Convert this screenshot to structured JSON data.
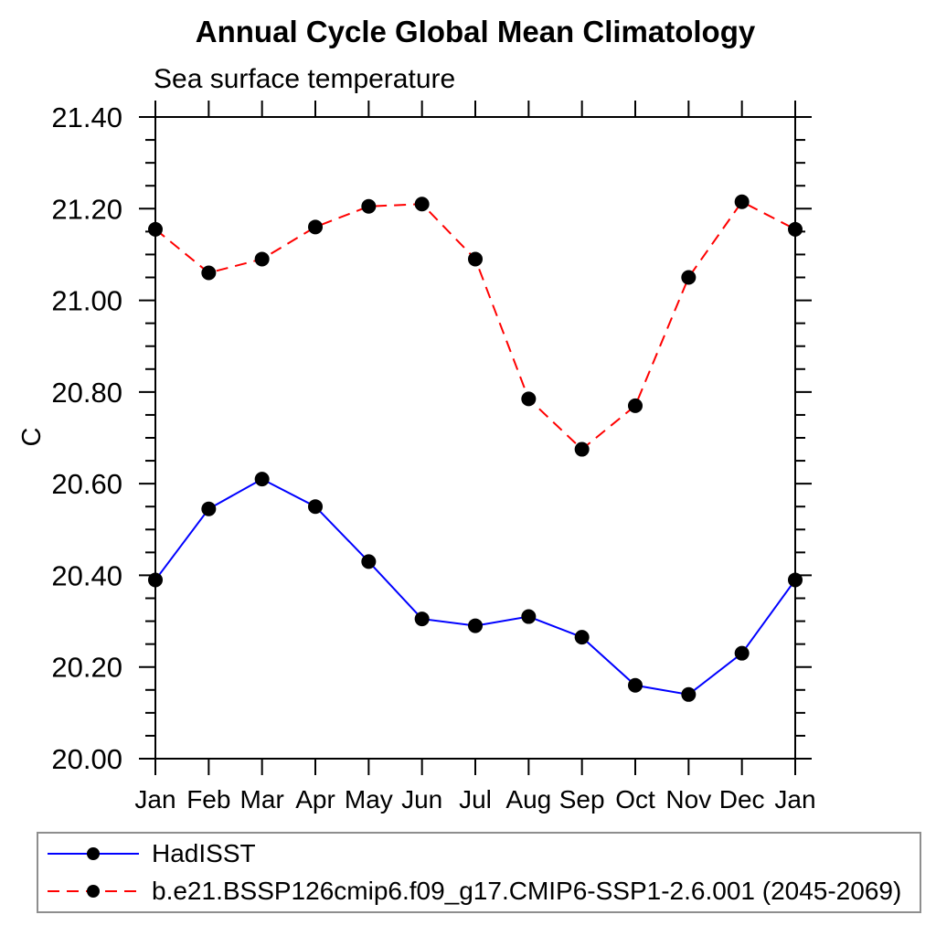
{
  "chart_data": {
    "type": "line",
    "title": "Annual Cycle Global Mean Climatology",
    "subtitle": "Sea surface temperature",
    "ylabel": "C",
    "xlabel": "",
    "ylim": [
      20.0,
      21.4
    ],
    "ytick_major": 0.2,
    "ytick_minor": 0.05,
    "ytick_labels": [
      "20.00",
      "20.20",
      "20.40",
      "20.60",
      "20.80",
      "21.00",
      "21.20",
      "21.40"
    ],
    "x_categories": [
      "Jan",
      "Feb",
      "Mar",
      "Apr",
      "May",
      "Jun",
      "Jul",
      "Aug",
      "Sep",
      "Oct",
      "Nov",
      "Dec",
      "Jan"
    ],
    "grid": false,
    "axis_color": "#000000",
    "marker_shape": "filled-circle",
    "legend_position": "bottom-left-box",
    "legend_border_color": "#8e8e8e",
    "series": [
      {
        "name": "HadISST",
        "color": "#0000ff",
        "line_style": "solid",
        "marker_color": "#000000",
        "values": [
          20.39,
          20.545,
          20.61,
          20.55,
          20.43,
          20.305,
          20.29,
          20.31,
          20.265,
          20.16,
          20.14,
          20.23,
          20.39
        ]
      },
      {
        "name": "b.e21.BSSP126cmip6.f09_g17.CMIP6-SSP1-2.6.001 (2045-2069)",
        "color": "#ff0000",
        "line_style": "dashed",
        "marker_color": "#000000",
        "values": [
          21.155,
          21.06,
          21.09,
          21.16,
          21.205,
          21.21,
          21.09,
          20.785,
          20.675,
          20.77,
          21.05,
          21.215,
          21.155
        ]
      }
    ]
  }
}
